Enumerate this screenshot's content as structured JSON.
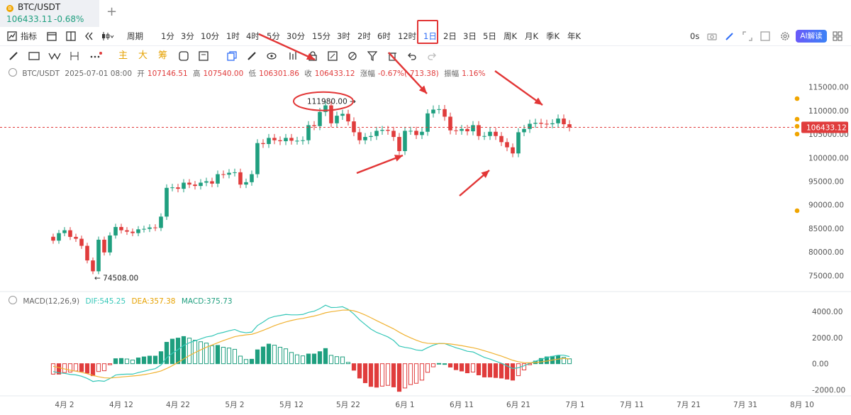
{
  "tab": {
    "symbol": "BTC/USDT",
    "price": "106433.11",
    "change": "-0.68%",
    "add": "+"
  },
  "toolbar": {
    "indicator_label": "指标",
    "period_label": "周期",
    "periods": [
      "1分",
      "3分",
      "10分",
      "1时",
      "4时",
      "5分",
      "30分",
      "15分",
      "3时",
      "2时",
      "6时",
      "12时",
      "1日",
      "2日",
      "3日",
      "5日",
      "周K",
      "月K",
      "季K",
      "年K"
    ],
    "selected_period": "1日",
    "countdown": "0s",
    "ai_label": "AI解读"
  },
  "drawtools": {
    "main": "主",
    "big": "大",
    "chip": "筹"
  },
  "ohlc": {
    "symbol": "BTC/USDT",
    "datetime": "2025-07-01 08:00",
    "open_label": "开",
    "open": "107146.51",
    "high_label": "高",
    "high": "107540.00",
    "low_label": "低",
    "low": "106301.86",
    "close_label": "收",
    "close": "106433.12",
    "change_label": "涨幅",
    "change": "-0.67%(-713.38)",
    "amp_label": "振幅",
    "amp": "1.16%"
  },
  "macd": {
    "name": "MACD(12,26,9)",
    "dif": "DIF:545.25",
    "dea": "DEA:357.38",
    "macd": "MACD:375.73"
  },
  "colors": {
    "up": "#1f9f7f",
    "down": "#e03c3c",
    "dif": "#35c7b8",
    "dea": "#f0b232",
    "accent": "#2f6df6"
  },
  "chart_data": {
    "type": "candlestick",
    "interval": "1日",
    "x_labels": [
      "4月 2",
      "4月 12",
      "4月 22",
      "5月 2",
      "5月 12",
      "5月 22",
      "6月 1",
      "6月 11",
      "6月 21",
      "7月 1",
      "7月 11",
      "7月 21",
      "7月 31",
      "8月 10"
    ],
    "x_label_dates": [
      "2025-04-02",
      "2025-04-12",
      "2025-04-22",
      "2025-05-02",
      "2025-05-12",
      "2025-05-22",
      "2025-06-01",
      "2025-06-11",
      "2025-06-21",
      "2025-07-01",
      "2025-07-11",
      "2025-07-21",
      "2025-07-31",
      "2025-08-10"
    ],
    "price_ticks": [
      115000,
      110000,
      105000,
      100000,
      95000,
      90000,
      85000,
      80000,
      75000
    ],
    "price_ticks_text": [
      "115000.00",
      "110000.00",
      "105000.00",
      "100000.00",
      "95000.00",
      "90000.00",
      "85000.00",
      "80000.00",
      "75000.00"
    ],
    "price_ylim": [
      72500,
      116600
    ],
    "last_price": 106433.12,
    "last_price_label": "106433.12",
    "high_marker": {
      "date": "2025-05-22",
      "value": 111980,
      "label": "111980.00"
    },
    "low_marker": {
      "date": "2025-04-07",
      "value": 74508,
      "label": "74508.00"
    },
    "start_date": "2025-03-31",
    "closes": [
      82400,
      84000,
      84600,
      83200,
      82800,
      81300,
      78200,
      75900,
      82600,
      79900,
      83500,
      85300,
      84600,
      84300,
      84000,
      84800,
      84900,
      85200,
      85100,
      87500,
      93600,
      93700,
      93400,
      94700,
      94300,
      94000,
      94700,
      95000,
      94500,
      96500,
      96400,
      96800,
      96900,
      94300,
      94800,
      96500,
      103100,
      102900,
      104200,
      103700,
      103500,
      104200,
      103600,
      103600,
      103700,
      106900,
      106700,
      109700,
      111100,
      107300,
      108900,
      109300,
      107700,
      105400,
      103700,
      104400,
      104600,
      105700,
      105900,
      105700,
      104400,
      101400,
      105700,
      105700,
      104800,
      105500,
      109400,
      110200,
      110300,
      108700,
      105800,
      105700,
      106100,
      105600,
      106900,
      104600,
      104600,
      105500,
      104600,
      103300,
      102200,
      100900,
      105400,
      106100,
      107200,
      107400,
      107200,
      107100,
      107300,
      108300,
      107100,
      106433
    ],
    "bodies_top_offsets_note": "",
    "macd_ticks": [
      4000,
      2000,
      0,
      -2000
    ],
    "macd_ticks_text": [
      "4000.00",
      "2000.00",
      "0.00",
      "-2000.00"
    ],
    "macd_ylim": [
      -2300,
      4600
    ],
    "dif": [
      -600,
      -700,
      -740,
      -820,
      -860,
      -960,
      -1130,
      -1360,
      -1300,
      -1350,
      -1140,
      -870,
      -820,
      -800,
      -800,
      -680,
      -580,
      -470,
      -380,
      -100,
      450,
      790,
      1080,
      1400,
      1600,
      1750,
      1900,
      2050,
      2120,
      2300,
      2400,
      2520,
      2620,
      2440,
      2370,
      2420,
      2920,
      3190,
      3480,
      3620,
      3690,
      3770,
      3740,
      3740,
      3770,
      3930,
      4020,
      4220,
      4480,
      4300,
      4310,
      4360,
      4160,
      3800,
      3360,
      3000,
      2650,
      2400,
      2230,
      2050,
      1780,
      1350,
      1250,
      1180,
      1050,
      1010,
      1230,
      1420,
      1550,
      1540,
      1380,
      1220,
      1100,
      950,
      900,
      690,
      480,
      350,
      190,
      30,
      -170,
      -370,
      -310,
      -160,
      30,
      190,
      340,
      460,
      560,
      650,
      650,
      545
    ],
    "dea": [
      -200,
      -300,
      -400,
      -500,
      -580,
      -660,
      -770,
      -900,
      -1000,
      -1080,
      -1100,
      -1060,
      -1020,
      -980,
      -940,
      -900,
      -840,
      -760,
      -670,
      -560,
      -370,
      -150,
      100,
      360,
      620,
      850,
      1060,
      1260,
      1430,
      1600,
      1770,
      1920,
      2070,
      2150,
      2210,
      2250,
      2390,
      2550,
      2730,
      2910,
      3060,
      3200,
      3310,
      3400,
      3470,
      3560,
      3650,
      3760,
      3900,
      3980,
      4040,
      4100,
      4110,
      4050,
      3910,
      3730,
      3520,
      3300,
      3090,
      2880,
      2670,
      2410,
      2180,
      1980,
      1800,
      1640,
      1560,
      1540,
      1540,
      1540,
      1510,
      1450,
      1380,
      1300,
      1220,
      1120,
      990,
      860,
      720,
      580,
      420,
      260,
      150,
      80,
      70,
      90,
      140,
      200,
      280,
      350,
      410,
      357
    ],
    "macd_hist": [
      -800,
      -800,
      -680,
      -640,
      -560,
      -600,
      -720,
      -920,
      -600,
      -540,
      -80,
      380,
      400,
      360,
      280,
      440,
      520,
      580,
      580,
      920,
      1640,
      1880,
      1960,
      2080,
      1960,
      1800,
      1680,
      1580,
      1380,
      1400,
      1260,
      1200,
      1100,
      580,
      320,
      340,
      1060,
      1280,
      1500,
      1420,
      1260,
      1140,
      860,
      680,
      600,
      740,
      740,
      920,
      1160,
      640,
      540,
      520,
      100,
      -500,
      -1100,
      -1460,
      -1740,
      -1800,
      -1720,
      -1660,
      -1780,
      -2120,
      -1860,
      -1600,
      -1500,
      -1260,
      -660,
      -240,
      20,
      0,
      -260,
      -460,
      -560,
      -700,
      -640,
      -860,
      -1020,
      -1020,
      -1060,
      -1100,
      -1180,
      -1260,
      -920,
      -480,
      -80,
      200,
      400,
      520,
      560,
      600,
      480,
      376
    ]
  }
}
